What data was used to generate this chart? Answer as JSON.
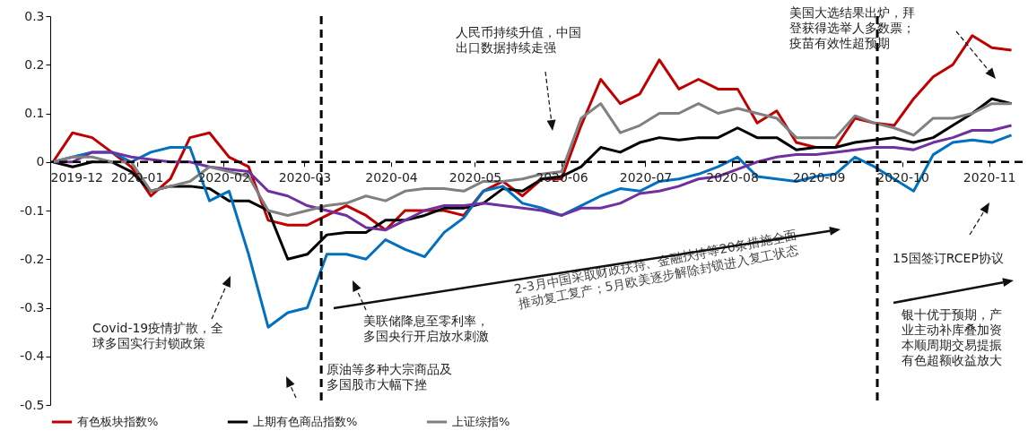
{
  "chart_data": {
    "type": "line",
    "x": [
      "2019-12-02",
      "2019-12-09",
      "2019-12-16",
      "2019-12-23",
      "2019-12-30",
      "2020-01-06",
      "2020-01-13",
      "2020-01-20",
      "2020-01-27",
      "2020-02-03",
      "2020-02-10",
      "2020-02-17",
      "2020-02-24",
      "2020-03-02",
      "2020-03-09",
      "2020-03-16",
      "2020-03-23",
      "2020-03-30",
      "2020-04-06",
      "2020-04-13",
      "2020-04-20",
      "2020-04-27",
      "2020-05-04",
      "2020-05-11",
      "2020-05-18",
      "2020-05-25",
      "2020-06-01",
      "2020-06-08",
      "2020-06-15",
      "2020-06-22",
      "2020-06-29",
      "2020-07-06",
      "2020-07-13",
      "2020-07-20",
      "2020-07-27",
      "2020-08-03",
      "2020-08-10",
      "2020-08-17",
      "2020-08-24",
      "2020-08-31",
      "2020-09-07",
      "2020-09-14",
      "2020-09-21",
      "2020-09-28",
      "2020-10-05",
      "2020-10-12",
      "2020-10-19",
      "2020-10-26",
      "2020-11-02",
      "2020-11-09"
    ],
    "series": [
      {
        "name": "有色板块指数%",
        "color": "#c00000",
        "values": [
          0,
          0.06,
          0.05,
          0.02,
          -0.01,
          -0.07,
          -0.035,
          0.05,
          0.06,
          0.01,
          -0.01,
          -0.12,
          -0.13,
          -0.13,
          -0.11,
          -0.09,
          -0.11,
          -0.14,
          -0.1,
          -0.1,
          -0.1,
          -0.11,
          -0.06,
          -0.04,
          -0.07,
          -0.035,
          -0.035,
          0.075,
          0.17,
          0.12,
          0.14,
          0.21,
          0.15,
          0.17,
          0.15,
          0.15,
          0.08,
          0.105,
          0.04,
          0.03,
          0.03,
          0.09,
          0.08,
          0.075,
          0.13,
          0.175,
          0.2,
          0.26,
          0.235,
          0.23
        ]
      },
      {
        "name": "上期有色商品指数%",
        "color": "#000000",
        "values": [
          0,
          -0.01,
          0,
          0,
          -0.02,
          -0.06,
          -0.05,
          -0.05,
          -0.055,
          -0.08,
          -0.08,
          -0.1,
          -0.2,
          -0.19,
          -0.15,
          -0.145,
          -0.145,
          -0.12,
          -0.12,
          -0.11,
          -0.095,
          -0.095,
          -0.085,
          -0.055,
          -0.06,
          -0.035,
          -0.03,
          -0.01,
          0.03,
          0.02,
          0.04,
          0.05,
          0.045,
          0.05,
          0.05,
          0.07,
          0.05,
          0.05,
          0.025,
          0.03,
          0.03,
          0.04,
          0.045,
          0.05,
          0.04,
          0.05,
          0.075,
          0.1,
          0.13,
          0.12
        ]
      },
      {
        "color": "#0070c0",
        "values": [
          0,
          0.01,
          0.02,
          0.02,
          0,
          0.02,
          0.03,
          0.03,
          -0.08,
          -0.06,
          -0.19,
          -0.34,
          -0.31,
          -0.3,
          -0.19,
          -0.19,
          -0.2,
          -0.16,
          -0.18,
          -0.195,
          -0.145,
          -0.115,
          -0.06,
          -0.05,
          -0.085,
          -0.095,
          -0.11,
          -0.09,
          -0.07,
          -0.055,
          -0.06,
          -0.04,
          -0.035,
          -0.025,
          -0.01,
          0.01,
          -0.03,
          -0.035,
          -0.04,
          -0.03,
          -0.025,
          0.01,
          -0.01,
          -0.035,
          -0.06,
          0.015,
          0.04,
          0.045,
          0.04,
          0.055
        ]
      },
      {
        "color": "#7030a0",
        "values": [
          0,
          0,
          0.02,
          0.02,
          0.01,
          0.005,
          0,
          0,
          -0.01,
          -0.015,
          -0.02,
          -0.06,
          -0.07,
          -0.09,
          -0.1,
          -0.11,
          -0.135,
          -0.14,
          -0.12,
          -0.1,
          -0.09,
          -0.09,
          -0.085,
          -0.09,
          -0.095,
          -0.1,
          -0.11,
          -0.095,
          -0.095,
          -0.085,
          -0.065,
          -0.06,
          -0.05,
          -0.035,
          -0.03,
          -0.015,
          0,
          0.01,
          0.015,
          0.015,
          0.02,
          0.025,
          0.03,
          0.03,
          0.025,
          0.04,
          0.05,
          0.065,
          0.065,
          0.075
        ]
      },
      {
        "name": "上证综指%",
        "color": "#808080",
        "values": [
          0,
          0.01,
          0.01,
          0,
          0,
          -0.06,
          -0.05,
          -0.04,
          -0.01,
          -0.02,
          -0.03,
          -0.1,
          -0.11,
          -0.1,
          -0.09,
          -0.085,
          -0.07,
          -0.08,
          -0.06,
          -0.055,
          -0.055,
          -0.06,
          -0.04,
          -0.04,
          -0.035,
          -0.025,
          -0.02,
          0.09,
          0.12,
          0.06,
          0.075,
          0.1,
          0.1,
          0.12,
          0.1,
          0.11,
          0.1,
          0.09,
          0.05,
          0.05,
          0.05,
          0.095,
          0.08,
          0.07,
          0.055,
          0.09,
          0.09,
          0.1,
          0.12,
          0.12
        ]
      }
    ],
    "xlim": [
      "2019-12-01",
      "2020-11-13"
    ],
    "xticks": [
      "2019-12",
      "2020-01",
      "2020-02",
      "2020-03",
      "2020-04",
      "2020-05",
      "2020-06",
      "2020-07",
      "2020-08",
      "2020-09",
      "2020-10",
      "2020-11"
    ],
    "ylim": [
      -0.5,
      0.3
    ],
    "yticks": [
      -0.5,
      -0.4,
      -0.3,
      -0.2,
      -0.1,
      0,
      0.1,
      0.2,
      0.3
    ],
    "ref_lines": [
      {
        "axis": "y",
        "value": 0,
        "color": "#000000",
        "line_style": "dashed"
      },
      {
        "axis": "x",
        "value": "2020-03-07",
        "color": "#000000",
        "line_style": "dashed"
      },
      {
        "axis": "x",
        "value": "2020-09-22",
        "color": "#000000",
        "line_style": "dashed"
      }
    ],
    "annotations": [
      "Covid-19疫情扩散，全球多国实行封锁政策",
      "原油等多种大宗商品及多国股市大幅下挫",
      "美联储降息至零利率，多国央行开启放水刺激",
      "人民币持续升值，中国出口数据持续走强",
      "2-3月中国采取财政扶持、金融扶持等20条措施全面推动复工复产；5月欧美逐步解除封锁进入复工状态",
      "美国大选结果出炉，拜登获得选举人多数票；疫苗有效性超预期",
      "15国签订RCEP协议",
      "银十优于预期，产业主动补库叠加资本顺周期交易提振有色超额收益放大"
    ],
    "legend": "bottom"
  }
}
